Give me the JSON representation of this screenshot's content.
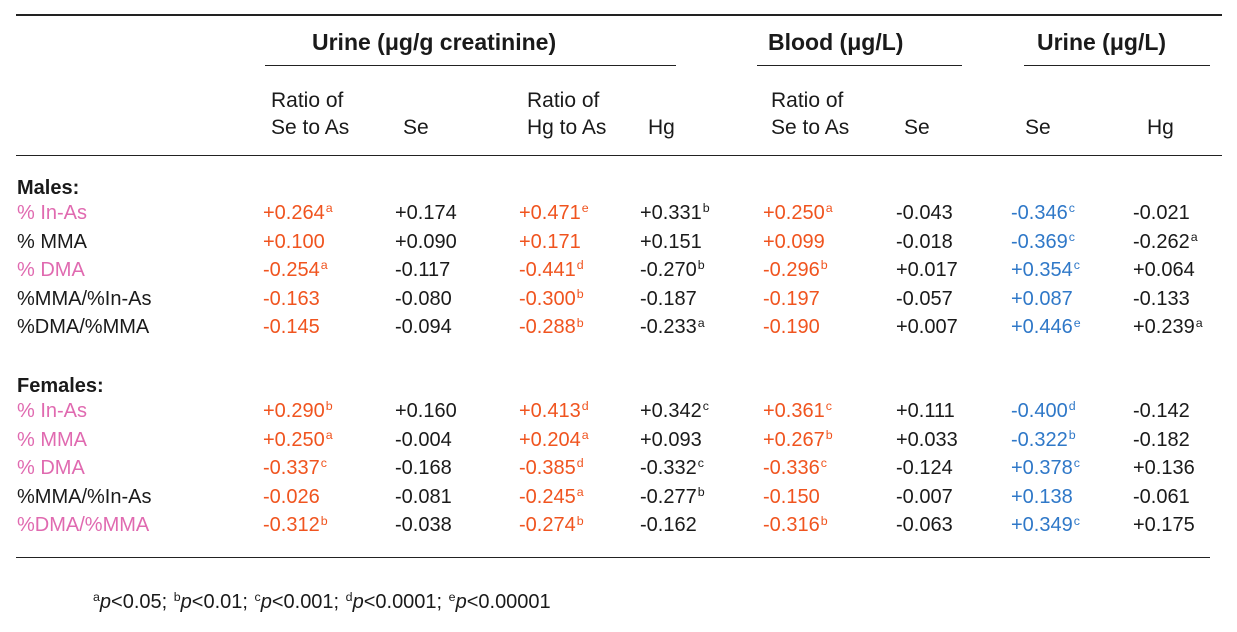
{
  "colors": {
    "black": "#1a1a1a",
    "pink": "#e06ab0",
    "orange": "#f0541f",
    "blue": "#2f78c8"
  },
  "groups": [
    "Urine (μg/g creatinine)",
    "Blood (μg/L)",
    "Urine (μg/L)"
  ],
  "subheaders": [
    [
      "Ratio of",
      "Se to As"
    ],
    [
      "",
      "Se"
    ],
    [
      "Ratio of",
      "Hg to As"
    ],
    [
      "",
      "Hg"
    ],
    [
      "Ratio of",
      "Se to As"
    ],
    [
      "",
      "Se"
    ],
    [
      "",
      "Se"
    ],
    [
      "",
      "Hg"
    ]
  ],
  "sections": [
    {
      "title": "Males:",
      "rows": [
        {
          "label": "% In-As",
          "label_color": "pink",
          "cells": [
            {
              "v": "+0.264",
              "s": "a",
              "c": "orange"
            },
            {
              "v": "+0.174",
              "s": "",
              "c": "black"
            },
            {
              "v": "+0.471",
              "s": "e",
              "c": "orange"
            },
            {
              "v": "+0.331",
              "s": "b",
              "c": "black"
            },
            {
              "v": "+0.250",
              "s": "a",
              "c": "orange"
            },
            {
              "v": "-0.043",
              "s": "",
              "c": "black"
            },
            {
              "v": "-0.346",
              "s": "c",
              "c": "blue"
            },
            {
              "v": "-0.021",
              "s": "",
              "c": "black"
            }
          ]
        },
        {
          "label": "% MMA",
          "label_color": "black",
          "cells": [
            {
              "v": "+0.100",
              "s": "",
              "c": "orange"
            },
            {
              "v": "+0.090",
              "s": "",
              "c": "black"
            },
            {
              "v": "+0.171",
              "s": "",
              "c": "orange"
            },
            {
              "v": "+0.151",
              "s": "",
              "c": "black"
            },
            {
              "v": "+0.099",
              "s": "",
              "c": "orange"
            },
            {
              "v": "-0.018",
              "s": "",
              "c": "black"
            },
            {
              "v": "-0.369",
              "s": "c",
              "c": "blue"
            },
            {
              "v": "-0.262",
              "s": "a",
              "c": "black"
            }
          ]
        },
        {
          "label": "% DMA",
          "label_color": "pink",
          "cells": [
            {
              "v": "-0.254",
              "s": "a",
              "c": "orange"
            },
            {
              "v": "-0.117",
              "s": "",
              "c": "black"
            },
            {
              "v": "-0.441",
              "s": "d",
              "c": "orange"
            },
            {
              "v": "-0.270",
              "s": "b",
              "c": "black"
            },
            {
              "v": "-0.296",
              "s": "b",
              "c": "orange"
            },
            {
              "v": "+0.017",
              "s": "",
              "c": "black"
            },
            {
              "v": "+0.354",
              "s": "c",
              "c": "blue"
            },
            {
              "v": "+0.064",
              "s": "",
              "c": "black"
            }
          ]
        },
        {
          "label": "%MMA/%In-As",
          "label_color": "black",
          "cells": [
            {
              "v": "-0.163",
              "s": "",
              "c": "orange"
            },
            {
              "v": "-0.080",
              "s": "",
              "c": "black"
            },
            {
              "v": "-0.300",
              "s": "b",
              "c": "orange"
            },
            {
              "v": "-0.187",
              "s": "",
              "c": "black"
            },
            {
              "v": "-0.197",
              "s": "",
              "c": "orange"
            },
            {
              "v": "-0.057",
              "s": "",
              "c": "black"
            },
            {
              "v": "+0.087",
              "s": "",
              "c": "blue"
            },
            {
              "v": "-0.133",
              "s": "",
              "c": "black"
            }
          ]
        },
        {
          "label": "%DMA/%MMA",
          "label_color": "black",
          "cells": [
            {
              "v": "-0.145",
              "s": "",
              "c": "orange"
            },
            {
              "v": "-0.094",
              "s": "",
              "c": "black"
            },
            {
              "v": "-0.288",
              "s": "b",
              "c": "orange"
            },
            {
              "v": "-0.233",
              "s": "a",
              "c": "black"
            },
            {
              "v": "-0.190",
              "s": "",
              "c": "orange"
            },
            {
              "v": "+0.007",
              "s": "",
              "c": "black"
            },
            {
              "v": "+0.446",
              "s": "e",
              "c": "blue"
            },
            {
              "v": "+0.239",
              "s": "a",
              "c": "black"
            }
          ]
        }
      ]
    },
    {
      "title": "Females:",
      "rows": [
        {
          "label": "% In-As",
          "label_color": "pink",
          "cells": [
            {
              "v": "+0.290",
              "s": "b",
              "c": "orange"
            },
            {
              "v": "+0.160",
              "s": "",
              "c": "black"
            },
            {
              "v": "+0.413",
              "s": "d",
              "c": "orange"
            },
            {
              "v": "+0.342",
              "s": "c",
              "c": "black"
            },
            {
              "v": "+0.361",
              "s": "c",
              "c": "orange"
            },
            {
              "v": "+0.111",
              "s": "",
              "c": "black"
            },
            {
              "v": "-0.400",
              "s": "d",
              "c": "blue"
            },
            {
              "v": "-0.142",
              "s": "",
              "c": "black"
            }
          ]
        },
        {
          "label": "% MMA",
          "label_color": "pink",
          "cells": [
            {
              "v": "+0.250",
              "s": "a",
              "c": "orange"
            },
            {
              "v": "-0.004",
              "s": "",
              "c": "black"
            },
            {
              "v": "+0.204",
              "s": "a",
              "c": "orange"
            },
            {
              "v": "+0.093",
              "s": "",
              "c": "black"
            },
            {
              "v": "+0.267",
              "s": "b",
              "c": "orange"
            },
            {
              "v": "+0.033",
              "s": "",
              "c": "black"
            },
            {
              "v": "-0.322",
              "s": "b",
              "c": "blue"
            },
            {
              "v": "-0.182",
              "s": "",
              "c": "black"
            }
          ]
        },
        {
          "label": "% DMA",
          "label_color": "pink",
          "cells": [
            {
              "v": "-0.337",
              "s": "c",
              "c": "orange"
            },
            {
              "v": "-0.168",
              "s": "",
              "c": "black"
            },
            {
              "v": "-0.385",
              "s": "d",
              "c": "orange"
            },
            {
              "v": "-0.332",
              "s": "c",
              "c": "black"
            },
            {
              "v": "-0.336",
              "s": "c",
              "c": "orange"
            },
            {
              "v": "-0.124",
              "s": "",
              "c": "black"
            },
            {
              "v": "+0.378",
              "s": "c",
              "c": "blue"
            },
            {
              "v": "+0.136",
              "s": "",
              "c": "black"
            }
          ]
        },
        {
          "label": "%MMA/%In-As",
          "label_color": "black",
          "cells": [
            {
              "v": "-0.026",
              "s": "",
              "c": "orange"
            },
            {
              "v": "-0.081",
              "s": "",
              "c": "black"
            },
            {
              "v": "-0.245",
              "s": "a",
              "c": "orange"
            },
            {
              "v": "-0.277",
              "s": "b",
              "c": "black"
            },
            {
              "v": "-0.150",
              "s": "",
              "c": "orange"
            },
            {
              "v": "-0.007",
              "s": "",
              "c": "black"
            },
            {
              "v": "+0.138",
              "s": "",
              "c": "blue"
            },
            {
              "v": "-0.061",
              "s": "",
              "c": "black"
            }
          ]
        },
        {
          "label": "%DMA/%MMA",
          "label_color": "pink",
          "cells": [
            {
              "v": "-0.312",
              "s": "b",
              "c": "orange"
            },
            {
              "v": "-0.038",
              "s": "",
              "c": "black"
            },
            {
              "v": "-0.274",
              "s": "b",
              "c": "orange"
            },
            {
              "v": "-0.162",
              "s": "",
              "c": "black"
            },
            {
              "v": "-0.316",
              "s": "b",
              "c": "orange"
            },
            {
              "v": "-0.063",
              "s": "",
              "c": "black"
            },
            {
              "v": "+0.349",
              "s": "c",
              "c": "blue"
            },
            {
              "v": "+0.175",
              "s": "",
              "c": "black"
            }
          ]
        }
      ]
    }
  ],
  "footnote": [
    {
      "sup": "a",
      "text": "<0.05; "
    },
    {
      "sup": "b",
      "text": "<0.01; "
    },
    {
      "sup": "c",
      "text": "<0.001; "
    },
    {
      "sup": "d",
      "text": "<0.0001; "
    },
    {
      "sup": "e",
      "text": "<0.00001"
    }
  ],
  "footnote_p": "p"
}
